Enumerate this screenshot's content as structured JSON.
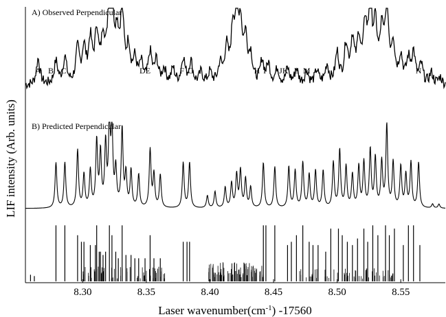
{
  "chart_data": {
    "type": "line",
    "xlabel": "Laser wavenumber(cm",
    "xlabel_sup": "-1",
    "xlabel_suffix": ") -17560",
    "ylabel": "LIF intensity (Arb. units)",
    "xlim": [
      8.255,
      8.585
    ],
    "xticks": [
      8.3,
      8.35,
      8.4,
      8.45,
      8.5,
      8.55
    ],
    "xtick_labels": [
      "8.30",
      "8.35",
      "8.40",
      "8.45",
      "8.50",
      "8.55"
    ],
    "panels": [
      {
        "name": "observed",
        "label": "A) Observed Perpendicular"
      },
      {
        "name": "predicted",
        "label": "B) Predicted Perpendicular"
      },
      {
        "name": "stick",
        "label": ""
      }
    ],
    "peak_labels": [
      {
        "text": "A",
        "x": 8.265
      },
      {
        "text": "B",
        "x": 8.275
      },
      {
        "text": "C",
        "x": 8.285
      },
      {
        "text": "DE",
        "x": 8.349
      },
      {
        "text": "F",
        "x": 8.378
      },
      {
        "text": "G",
        "x": 8.385
      },
      {
        "text": "H",
        "x": 8.437
      },
      {
        "text": "I",
        "x": 8.443
      },
      {
        "text": "JK",
        "x": 8.458
      },
      {
        "text": "L",
        "x": 8.468
      },
      {
        "text": "M",
        "x": 8.476
      },
      {
        "text": "N",
        "x": 8.564
      }
    ],
    "predicted_peaks": [
      {
        "x": 8.279,
        "h": 0.55
      },
      {
        "x": 8.286,
        "h": 0.55
      },
      {
        "x": 8.296,
        "h": 0.7
      },
      {
        "x": 8.301,
        "h": 0.4
      },
      {
        "x": 8.306,
        "h": 0.45
      },
      {
        "x": 8.311,
        "h": 0.8
      },
      {
        "x": 8.314,
        "h": 0.65
      },
      {
        "x": 8.318,
        "h": 0.75
      },
      {
        "x": 8.321,
        "h": 1.0
      },
      {
        "x": 8.323,
        "h": 0.9
      },
      {
        "x": 8.326,
        "h": 0.45
      },
      {
        "x": 8.331,
        "h": 0.95
      },
      {
        "x": 8.334,
        "h": 0.4
      },
      {
        "x": 8.338,
        "h": 0.45
      },
      {
        "x": 8.344,
        "h": 0.4
      },
      {
        "x": 8.353,
        "h": 0.7
      },
      {
        "x": 8.356,
        "h": 0.4
      },
      {
        "x": 8.361,
        "h": 0.4
      },
      {
        "x": 8.379,
        "h": 0.55
      },
      {
        "x": 8.384,
        "h": 0.55
      },
      {
        "x": 8.398,
        "h": 0.15
      },
      {
        "x": 8.404,
        "h": 0.2
      },
      {
        "x": 8.412,
        "h": 0.25
      },
      {
        "x": 8.417,
        "h": 0.3
      },
      {
        "x": 8.421,
        "h": 0.4
      },
      {
        "x": 8.424,
        "h": 0.45
      },
      {
        "x": 8.428,
        "h": 0.35
      },
      {
        "x": 8.432,
        "h": 0.25
      },
      {
        "x": 8.442,
        "h": 0.55
      },
      {
        "x": 8.451,
        "h": 0.5
      },
      {
        "x": 8.462,
        "h": 0.5
      },
      {
        "x": 8.467,
        "h": 0.45
      },
      {
        "x": 8.473,
        "h": 0.55
      },
      {
        "x": 8.478,
        "h": 0.4
      },
      {
        "x": 8.483,
        "h": 0.45
      },
      {
        "x": 8.489,
        "h": 0.45
      },
      {
        "x": 8.497,
        "h": 0.55
      },
      {
        "x": 8.502,
        "h": 0.7
      },
      {
        "x": 8.507,
        "h": 0.5
      },
      {
        "x": 8.512,
        "h": 0.4
      },
      {
        "x": 8.517,
        "h": 0.5
      },
      {
        "x": 8.521,
        "h": 0.55
      },
      {
        "x": 8.526,
        "h": 0.7
      },
      {
        "x": 8.53,
        "h": 0.6
      },
      {
        "x": 8.535,
        "h": 0.55
      },
      {
        "x": 8.539,
        "h": 1.0
      },
      {
        "x": 8.544,
        "h": 0.55
      },
      {
        "x": 8.55,
        "h": 0.5
      },
      {
        "x": 8.554,
        "h": 0.4
      },
      {
        "x": 8.558,
        "h": 0.55
      },
      {
        "x": 8.564,
        "h": 0.55
      },
      {
        "x": 8.575,
        "h": 0.05
      },
      {
        "x": 8.58,
        "h": 0.05
      }
    ],
    "observed_peaks": [
      {
        "x": 8.265,
        "h": 0.35
      },
      {
        "x": 8.279,
        "h": 0.3
      },
      {
        "x": 8.286,
        "h": 0.35
      },
      {
        "x": 8.296,
        "h": 0.45
      },
      {
        "x": 8.301,
        "h": 0.45
      },
      {
        "x": 8.306,
        "h": 0.55
      },
      {
        "x": 8.311,
        "h": 0.65
      },
      {
        "x": 8.316,
        "h": 0.55
      },
      {
        "x": 8.321,
        "h": 0.95
      },
      {
        "x": 8.323,
        "h": 0.85
      },
      {
        "x": 8.327,
        "h": 0.55
      },
      {
        "x": 8.331,
        "h": 0.9
      },
      {
        "x": 8.336,
        "h": 0.45
      },
      {
        "x": 8.341,
        "h": 0.3
      },
      {
        "x": 8.346,
        "h": 0.25
      },
      {
        "x": 8.353,
        "h": 0.4
      },
      {
        "x": 8.358,
        "h": 0.3
      },
      {
        "x": 8.364,
        "h": 0.2
      },
      {
        "x": 8.371,
        "h": 0.2
      },
      {
        "x": 8.379,
        "h": 0.35
      },
      {
        "x": 8.385,
        "h": 0.3
      },
      {
        "x": 8.393,
        "h": 0.15
      },
      {
        "x": 8.4,
        "h": 0.15
      },
      {
        "x": 8.408,
        "h": 0.25
      },
      {
        "x": 8.413,
        "h": 0.45
      },
      {
        "x": 8.418,
        "h": 0.65
      },
      {
        "x": 8.421,
        "h": 0.75
      },
      {
        "x": 8.424,
        "h": 0.7
      },
      {
        "x": 8.428,
        "h": 0.55
      },
      {
        "x": 8.432,
        "h": 0.35
      },
      {
        "x": 8.441,
        "h": 0.3
      },
      {
        "x": 8.446,
        "h": 0.25
      },
      {
        "x": 8.453,
        "h": 0.2
      },
      {
        "x": 8.461,
        "h": 0.2
      },
      {
        "x": 8.468,
        "h": 0.2
      },
      {
        "x": 8.476,
        "h": 0.18
      },
      {
        "x": 8.484,
        "h": 0.18
      },
      {
        "x": 8.492,
        "h": 0.25
      },
      {
        "x": 8.5,
        "h": 0.4
      },
      {
        "x": 8.507,
        "h": 0.5
      },
      {
        "x": 8.512,
        "h": 0.55
      },
      {
        "x": 8.517,
        "h": 0.55
      },
      {
        "x": 8.522,
        "h": 0.7
      },
      {
        "x": 8.526,
        "h": 0.95
      },
      {
        "x": 8.53,
        "h": 0.7
      },
      {
        "x": 8.535,
        "h": 0.6
      },
      {
        "x": 8.539,
        "h": 1.0
      },
      {
        "x": 8.544,
        "h": 0.5
      },
      {
        "x": 8.55,
        "h": 0.35
      },
      {
        "x": 8.556,
        "h": 0.3
      },
      {
        "x": 8.56,
        "h": 0.4
      },
      {
        "x": 8.566,
        "h": 0.25
      },
      {
        "x": 8.574,
        "h": 0.15
      },
      {
        "x": 8.581,
        "h": 0.1
      }
    ],
    "sticks": [
      {
        "x": 8.259,
        "h": 0.1
      },
      {
        "x": 8.262,
        "h": 0.08
      },
      {
        "x": 8.279,
        "h": 0.85
      },
      {
        "x": 8.286,
        "h": 0.85
      },
      {
        "x": 8.296,
        "h": 0.7
      },
      {
        "x": 8.299,
        "h": 0.6
      },
      {
        "x": 8.301,
        "h": 0.6
      },
      {
        "x": 8.306,
        "h": 0.55
      },
      {
        "x": 8.31,
        "h": 0.55
      },
      {
        "x": 8.311,
        "h": 0.85
      },
      {
        "x": 8.313,
        "h": 0.45
      },
      {
        "x": 8.314,
        "h": 0.45
      },
      {
        "x": 8.316,
        "h": 0.4
      },
      {
        "x": 8.318,
        "h": 0.45
      },
      {
        "x": 8.321,
        "h": 0.85
      },
      {
        "x": 8.323,
        "h": 0.7
      },
      {
        "x": 8.326,
        "h": 0.45
      },
      {
        "x": 8.328,
        "h": 0.35
      },
      {
        "x": 8.331,
        "h": 0.85
      },
      {
        "x": 8.334,
        "h": 0.4
      },
      {
        "x": 8.338,
        "h": 0.4
      },
      {
        "x": 8.341,
        "h": 0.35
      },
      {
        "x": 8.344,
        "h": 0.35
      },
      {
        "x": 8.349,
        "h": 0.35
      },
      {
        "x": 8.353,
        "h": 0.7
      },
      {
        "x": 8.356,
        "h": 0.35
      },
      {
        "x": 8.361,
        "h": 0.35
      },
      {
        "x": 8.379,
        "h": 0.6
      },
      {
        "x": 8.382,
        "h": 0.6
      },
      {
        "x": 8.384,
        "h": 0.6
      },
      {
        "x": 8.442,
        "h": 0.85
      },
      {
        "x": 8.444,
        "h": 0.85
      },
      {
        "x": 8.451,
        "h": 0.85
      },
      {
        "x": 8.461,
        "h": 0.55
      },
      {
        "x": 8.464,
        "h": 0.6
      },
      {
        "x": 8.468,
        "h": 0.7
      },
      {
        "x": 8.473,
        "h": 0.85
      },
      {
        "x": 8.478,
        "h": 0.6
      },
      {
        "x": 8.481,
        "h": 0.55
      },
      {
        "x": 8.485,
        "h": 0.55
      },
      {
        "x": 8.491,
        "h": 0.45
      },
      {
        "x": 8.495,
        "h": 0.8
      },
      {
        "x": 8.501,
        "h": 0.8
      },
      {
        "x": 8.504,
        "h": 0.7
      },
      {
        "x": 8.508,
        "h": 0.6
      },
      {
        "x": 8.512,
        "h": 0.55
      },
      {
        "x": 8.516,
        "h": 0.65
      },
      {
        "x": 8.521,
        "h": 0.8
      },
      {
        "x": 8.524,
        "h": 0.6
      },
      {
        "x": 8.528,
        "h": 0.85
      },
      {
        "x": 8.532,
        "h": 0.7
      },
      {
        "x": 8.538,
        "h": 0.85
      },
      {
        "x": 8.541,
        "h": 0.7
      },
      {
        "x": 8.545,
        "h": 0.8
      },
      {
        "x": 8.552,
        "h": 0.55
      },
      {
        "x": 8.556,
        "h": 0.85
      },
      {
        "x": 8.56,
        "h": 0.85
      },
      {
        "x": 8.565,
        "h": 0.55
      }
    ]
  }
}
